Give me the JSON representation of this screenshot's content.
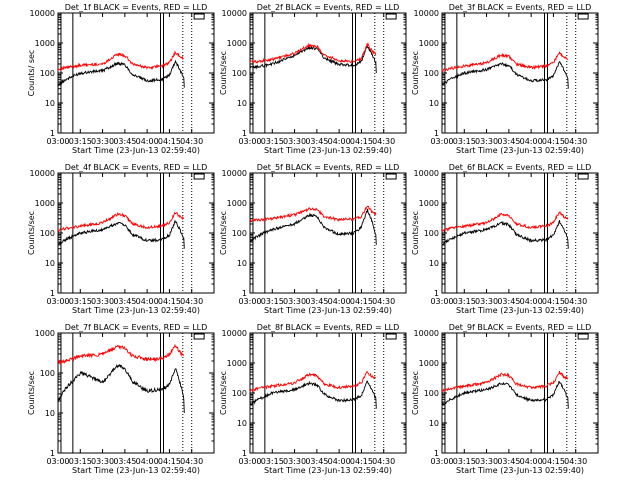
{
  "figure": {
    "xlabel": "Start Time (23-Jun-13 02:59:40)",
    "ylabel": "Counts/sec",
    "ylabel_first_panel": "Counts/ sec",
    "x_ticks": [
      "03:00",
      "03:15",
      "03:30",
      "03:45",
      "04:00",
      "04:15",
      "04:30"
    ],
    "y_ticks_4dec": [
      "1",
      "10",
      "100",
      "1000",
      "10000"
    ],
    "y_ticks_3dec": [
      "1",
      "10",
      "100",
      "1000"
    ],
    "colors": {
      "events": "#000000",
      "lld": "#ff0000"
    }
  },
  "chart_data": [
    {
      "type": "line",
      "title": "Det_1f BLACK = Events, RED = LLD",
      "ylim": [
        1,
        10000
      ],
      "scale": "log",
      "series": [
        {
          "name": "BLACK = Events",
          "x": [
            "03:00",
            "03:05",
            "03:15",
            "03:30",
            "03:40",
            "03:45",
            "03:50",
            "04:00",
            "04:10",
            "04:15",
            "04:19",
            "04:22",
            "04:25"
          ],
          "values": [
            40,
            60,
            100,
            120,
            210,
            190,
            90,
            55,
            60,
            85,
            250,
            130,
            65
          ]
        },
        {
          "name": "RED = LLD",
          "x": [
            "03:00",
            "03:05",
            "03:15",
            "03:30",
            "03:40",
            "03:45",
            "03:50",
            "04:00",
            "04:10",
            "04:15",
            "04:19",
            "04:22",
            "04:25"
          ],
          "values": [
            130,
            150,
            180,
            200,
            420,
            380,
            200,
            150,
            170,
            220,
            500,
            350,
            300
          ]
        }
      ]
    },
    {
      "type": "line",
      "title": "Det_2f BLACK = Events, RED = LLD",
      "ylim": [
        1,
        10000
      ],
      "scale": "log",
      "series": [
        {
          "name": "BLACK = Events",
          "x": [
            "03:00",
            "03:05",
            "03:15",
            "03:30",
            "03:40",
            "03:45",
            "03:50",
            "04:00",
            "04:10",
            "04:15",
            "04:19",
            "04:22",
            "04:25"
          ],
          "values": [
            150,
            160,
            200,
            380,
            700,
            650,
            320,
            190,
            180,
            250,
            800,
            450,
            200
          ]
        },
        {
          "name": "RED = LLD",
          "x": [
            "03:00",
            "03:05",
            "03:15",
            "03:30",
            "03:40",
            "03:45",
            "03:50",
            "04:00",
            "04:10",
            "04:15",
            "04:19",
            "04:22",
            "04:25"
          ],
          "values": [
            240,
            240,
            280,
            450,
            850,
            780,
            400,
            260,
            240,
            300,
            950,
            550,
            420
          ]
        }
      ]
    },
    {
      "type": "line",
      "title": "Det_3f BLACK = Events, RED = LLD",
      "ylim": [
        1,
        10000
      ],
      "scale": "log",
      "series": [
        {
          "name": "BLACK = Events",
          "x": [
            "03:00",
            "03:05",
            "03:15",
            "03:30",
            "03:40",
            "03:45",
            "03:50",
            "04:00",
            "04:10",
            "04:15",
            "04:19",
            "04:22",
            "04:25"
          ],
          "values": [
            40,
            60,
            100,
            130,
            200,
            180,
            90,
            55,
            60,
            80,
            240,
            130,
            60
          ]
        },
        {
          "name": "RED = LLD",
          "x": [
            "03:00",
            "03:05",
            "03:15",
            "03:30",
            "03:40",
            "03:45",
            "03:50",
            "04:00",
            "04:10",
            "04:15",
            "04:19",
            "04:22",
            "04:25"
          ],
          "values": [
            120,
            140,
            170,
            220,
            400,
            360,
            200,
            150,
            170,
            220,
            480,
            350,
            300
          ]
        }
      ]
    },
    {
      "type": "line",
      "title": "Det_4f BLACK = Events, RED = LLD",
      "ylim": [
        1,
        10000
      ],
      "scale": "log",
      "series": [
        {
          "name": "BLACK = Events",
          "x": [
            "03:00",
            "03:05",
            "03:15",
            "03:30",
            "03:40",
            "03:45",
            "03:50",
            "04:00",
            "04:10",
            "04:15",
            "04:19",
            "04:22",
            "04:25"
          ],
          "values": [
            40,
            60,
            100,
            130,
            210,
            190,
            90,
            55,
            60,
            85,
            250,
            130,
            60
          ]
        },
        {
          "name": "RED = LLD",
          "x": [
            "03:00",
            "03:05",
            "03:15",
            "03:30",
            "03:40",
            "03:45",
            "03:50",
            "04:00",
            "04:10",
            "04:15",
            "04:19",
            "04:22",
            "04:25"
          ],
          "values": [
            120,
            140,
            170,
            220,
            420,
            380,
            200,
            150,
            170,
            220,
            500,
            350,
            300
          ]
        }
      ]
    },
    {
      "type": "line",
      "title": "Det_5f BLACK = Events, RED = LLD",
      "ylim": [
        1,
        10000
      ],
      "scale": "log",
      "series": [
        {
          "name": "BLACK = Events",
          "x": [
            "03:00",
            "03:05",
            "03:15",
            "03:30",
            "03:40",
            "03:45",
            "03:50",
            "04:00",
            "04:10",
            "04:15",
            "04:19",
            "04:22",
            "04:25"
          ],
          "values": [
            50,
            80,
            130,
            200,
            400,
            360,
            150,
            90,
            100,
            160,
            600,
            250,
            80
          ]
        },
        {
          "name": "RED = LLD",
          "x": [
            "03:00",
            "03:05",
            "03:15",
            "03:30",
            "03:40",
            "03:45",
            "03:50",
            "04:00",
            "04:10",
            "04:15",
            "04:19",
            "04:22",
            "04:25"
          ],
          "values": [
            260,
            270,
            300,
            400,
            650,
            600,
            350,
            280,
            290,
            350,
            800,
            500,
            420
          ]
        }
      ]
    },
    {
      "type": "line",
      "title": "Det_6f BLACK = Events, RED = LLD",
      "ylim": [
        1,
        10000
      ],
      "scale": "log",
      "series": [
        {
          "name": "BLACK = Events",
          "x": [
            "03:00",
            "03:05",
            "03:15",
            "03:30",
            "03:40",
            "03:45",
            "03:50",
            "04:00",
            "04:10",
            "04:15",
            "04:19",
            "04:22",
            "04:25"
          ],
          "values": [
            40,
            60,
            100,
            130,
            210,
            190,
            90,
            55,
            60,
            85,
            250,
            130,
            60
          ]
        },
        {
          "name": "RED = LLD",
          "x": [
            "03:00",
            "03:05",
            "03:15",
            "03:30",
            "03:40",
            "03:45",
            "03:50",
            "04:00",
            "04:10",
            "04:15",
            "04:19",
            "04:22",
            "04:25"
          ],
          "values": [
            120,
            140,
            170,
            220,
            420,
            380,
            200,
            150,
            170,
            220,
            500,
            350,
            300
          ]
        }
      ]
    },
    {
      "type": "line",
      "title": "Det_7f BLACK = Events, RED = LLD",
      "ylim": [
        1,
        1000
      ],
      "scale": "log",
      "series": [
        {
          "name": "BLACK = Events",
          "x": [
            "03:00",
            "03:05",
            "03:15",
            "03:30",
            "03:40",
            "03:45",
            "03:50",
            "04:00",
            "04:10",
            "04:15",
            "04:19",
            "04:22",
            "04:25"
          ],
          "values": [
            20,
            40,
            100,
            60,
            150,
            130,
            60,
            35,
            40,
            50,
            130,
            60,
            20
          ]
        },
        {
          "name": "RED = LLD",
          "x": [
            "03:00",
            "03:05",
            "03:15",
            "03:30",
            "03:40",
            "03:45",
            "03:50",
            "04:00",
            "04:10",
            "04:15",
            "04:19",
            "04:22",
            "04:25"
          ],
          "values": [
            180,
            200,
            260,
            300,
            450,
            420,
            270,
            220,
            230,
            280,
            500,
            330,
            260
          ]
        }
      ]
    },
    {
      "type": "line",
      "title": "Det_8f BLACK = Events, RED = LLD",
      "ylim": [
        1,
        10000
      ],
      "scale": "log",
      "series": [
        {
          "name": "BLACK = Events",
          "x": [
            "03:00",
            "03:05",
            "03:15",
            "03:30",
            "03:40",
            "03:45",
            "03:50",
            "04:00",
            "04:10",
            "04:15",
            "04:19",
            "04:22",
            "04:25"
          ],
          "values": [
            40,
            60,
            100,
            130,
            210,
            190,
            90,
            55,
            60,
            85,
            250,
            130,
            60
          ]
        },
        {
          "name": "RED = LLD",
          "x": [
            "03:00",
            "03:05",
            "03:15",
            "03:30",
            "03:40",
            "03:45",
            "03:50",
            "04:00",
            "04:10",
            "04:15",
            "04:19",
            "04:22",
            "04:25"
          ],
          "values": [
            120,
            140,
            170,
            220,
            420,
            380,
            200,
            150,
            170,
            220,
            500,
            350,
            300
          ]
        }
      ]
    },
    {
      "type": "line",
      "title": "Det_9f BLACK = Events, RED = LLD",
      "ylim": [
        1,
        10000
      ],
      "scale": "log",
      "series": [
        {
          "name": "BLACK = Events",
          "x": [
            "03:00",
            "03:05",
            "03:15",
            "03:30",
            "03:40",
            "03:45",
            "03:50",
            "04:00",
            "04:10",
            "04:15",
            "04:19",
            "04:22",
            "04:25"
          ],
          "values": [
            40,
            60,
            100,
            130,
            210,
            190,
            90,
            55,
            60,
            85,
            250,
            130,
            60
          ]
        },
        {
          "name": "RED = LLD",
          "x": [
            "03:00",
            "03:05",
            "03:15",
            "03:30",
            "03:40",
            "03:45",
            "03:50",
            "04:00",
            "04:10",
            "04:15",
            "04:19",
            "04:22",
            "04:25"
          ],
          "values": [
            120,
            140,
            170,
            220,
            420,
            380,
            200,
            150,
            170,
            220,
            500,
            350,
            300
          ]
        }
      ]
    }
  ]
}
